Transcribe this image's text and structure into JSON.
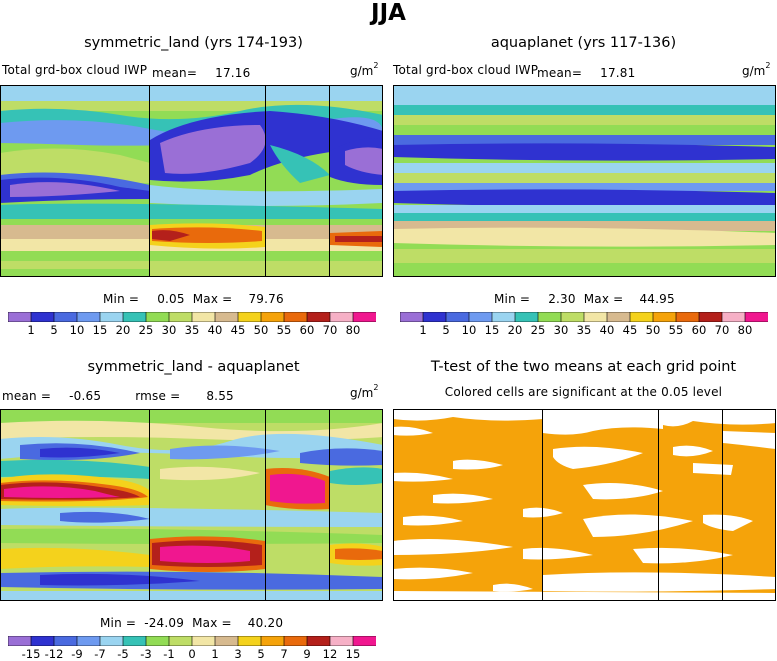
{
  "main_title": "JJA",
  "panels": {
    "top_left": {
      "title": "symmetric_land (yrs 174-193)",
      "variable": "Total grd-box cloud IWP",
      "mean_label": "mean=",
      "mean_value": "17.16",
      "unit_base": "g/m",
      "unit_exp": "2",
      "min_label": "Min =",
      "min_value": "0.05",
      "max_label": "Max =",
      "max_value": "79.76"
    },
    "top_right": {
      "title": "aquaplanet (yrs 117-136)",
      "variable": "Total grd-box cloud IWP",
      "mean_label": "mean=",
      "mean_value": "17.81",
      "unit_base": "g/m",
      "unit_exp": "2",
      "min_label": "Min =",
      "min_value": "2.30",
      "max_label": "Max =",
      "max_value": "44.95"
    },
    "bottom_left": {
      "title": "symmetric_land - aquaplanet",
      "mean_label": "mean =",
      "mean_value": "-0.65",
      "rmse_label": "rmse =",
      "rmse_value": "8.55",
      "unit_base": "g/m",
      "unit_exp": "2",
      "min_label": "Min =",
      "min_value": "-24.09",
      "max_label": "Max =",
      "max_value": "40.20"
    },
    "bottom_right": {
      "title": "T-test of the two means at each grid point",
      "subtitle": "Colored cells are significant at the 0.05 level",
      "sig_color": "#f5a30a"
    }
  },
  "chart_data": [
    {
      "type": "heatmap",
      "title": "symmetric_land (yrs 174-193)",
      "levels": [
        "1",
        "5",
        "10",
        "15",
        "20",
        "25",
        "30",
        "35",
        "40",
        "45",
        "50",
        "55",
        "60",
        "70",
        "80"
      ],
      "colors": [
        "#9a6fd6",
        "#2f32d0",
        "#4a6ae0",
        "#6e9af0",
        "#9ad4f0",
        "#36c2b6",
        "#92dc55",
        "#bedd66",
        "#f2e6a6",
        "#d7ba8f",
        "#f4d21c",
        "#f5a30a",
        "#e96a0c",
        "#b4201b",
        "#f6b0c6",
        "#f0178f"
      ]
    },
    {
      "type": "heatmap",
      "title": "aquaplanet (yrs 117-136)",
      "levels": [
        "1",
        "5",
        "10",
        "15",
        "20",
        "25",
        "30",
        "35",
        "40",
        "45",
        "50",
        "55",
        "60",
        "70",
        "80"
      ],
      "colors": [
        "#9a6fd6",
        "#2f32d0",
        "#4a6ae0",
        "#6e9af0",
        "#9ad4f0",
        "#36c2b6",
        "#92dc55",
        "#bedd66",
        "#f2e6a6",
        "#d7ba8f",
        "#f4d21c",
        "#f5a30a",
        "#e96a0c",
        "#b4201b",
        "#f6b0c6",
        "#f0178f"
      ]
    },
    {
      "type": "heatmap",
      "title": "symmetric_land - aquaplanet",
      "levels": [
        "-15",
        "-12",
        "-9",
        "-7",
        "-5",
        "-3",
        "-1",
        "0",
        "1",
        "3",
        "5",
        "7",
        "9",
        "12",
        "15"
      ],
      "colors": [
        "#9a6fd6",
        "#2f32d0",
        "#4a6ae0",
        "#6e9af0",
        "#9ad4f0",
        "#36c2b6",
        "#92dc55",
        "#bedd66",
        "#f2e6a6",
        "#d7ba8f",
        "#f4d21c",
        "#f5a30a",
        "#e96a0c",
        "#b4201b",
        "#f6b0c6",
        "#f0178f"
      ]
    },
    {
      "type": "heatmap",
      "title": "T-test of the two means at each grid point",
      "note": "significance mask"
    }
  ]
}
